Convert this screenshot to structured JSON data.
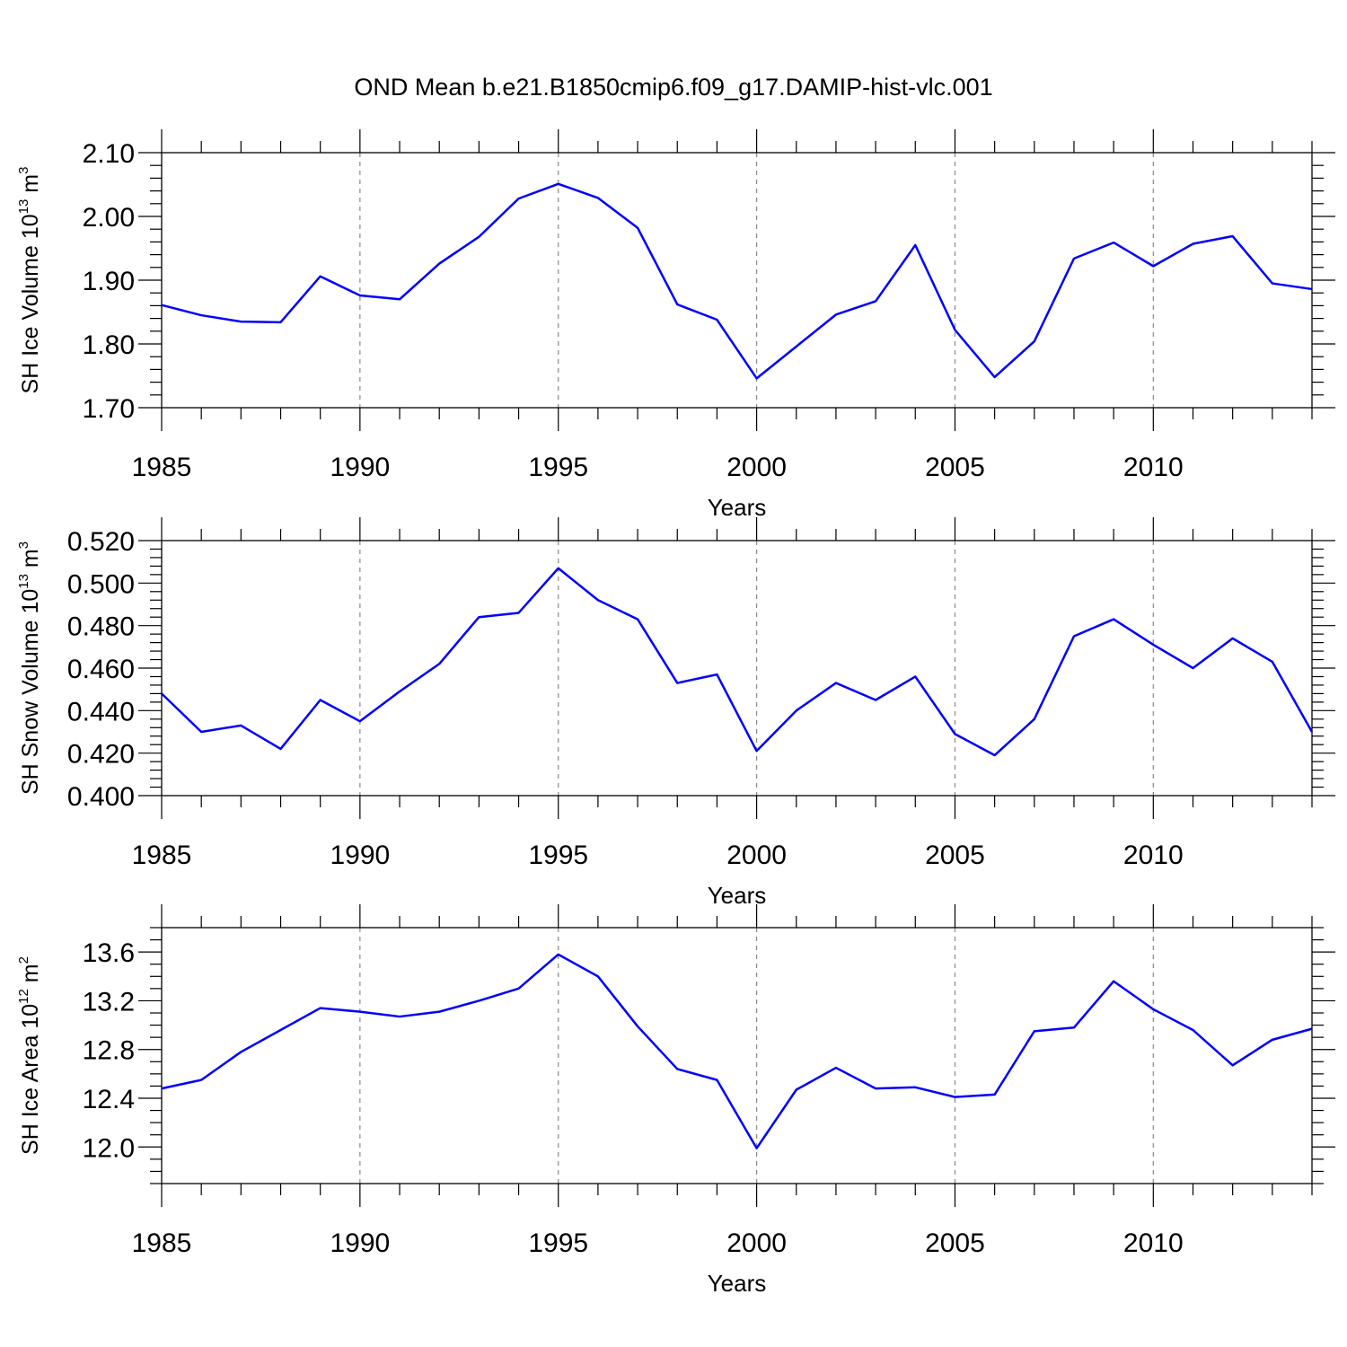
{
  "title": "OND Mean b.e21.B1850cmip6.f09_g17.DAMIP-hist-vlc.001",
  "colors": {
    "line": "#0000ff",
    "axis": "#000000",
    "grid": "#888888"
  },
  "chart_data": [
    {
      "type": "line",
      "ylabel": {
        "text": "SH Ice Volume 10",
        "exponent": "13",
        "unit": " m",
        "unit_exponent": "3"
      },
      "xlabel": "Years",
      "xlim": [
        1985,
        2014
      ],
      "ylim": [
        1.7,
        2.1
      ],
      "xticks": [
        1985,
        1990,
        1995,
        2000,
        2005,
        2010
      ],
      "xtick_labels": [
        "1985",
        "1990",
        "1995",
        "2000",
        "2005",
        "2010"
      ],
      "yticks": [
        1.7,
        1.8,
        1.9,
        2.0,
        2.1
      ],
      "ytick_labels": [
        "1.70",
        "1.80",
        "1.90",
        "2.00",
        "2.10"
      ],
      "yminor": 0.02,
      "grid": "x-dashed",
      "x": [
        1985,
        1986,
        1987,
        1988,
        1989,
        1990,
        1991,
        1992,
        1993,
        1994,
        1995,
        1996,
        1997,
        1998,
        1999,
        2000,
        2001,
        2002,
        2003,
        2004,
        2005,
        2006,
        2007,
        2008,
        2009,
        2010,
        2011,
        2012,
        2013,
        2014
      ],
      "values": [
        1.861,
        1.845,
        1.835,
        1.834,
        1.906,
        1.876,
        1.87,
        1.926,
        1.968,
        2.028,
        2.051,
        2.029,
        1.982,
        1.862,
        1.838,
        1.746,
        1.796,
        1.846,
        1.867,
        1.955,
        1.822,
        1.748,
        1.804,
        1.934,
        1.959,
        1.922,
        1.957,
        1.969,
        1.895,
        1.886
      ]
    },
    {
      "type": "line",
      "ylabel": {
        "text": "SH Snow Volume 10",
        "exponent": "13",
        "unit": " m",
        "unit_exponent": "3"
      },
      "xlabel": "Years",
      "xlim": [
        1985,
        2014
      ],
      "ylim": [
        0.4,
        0.52
      ],
      "xticks": [
        1985,
        1990,
        1995,
        2000,
        2005,
        2010
      ],
      "xtick_labels": [
        "1985",
        "1990",
        "1995",
        "2000",
        "2005",
        "2010"
      ],
      "yticks": [
        0.4,
        0.42,
        0.44,
        0.46,
        0.48,
        0.5,
        0.52
      ],
      "ytick_labels": [
        "0.400",
        "0.420",
        "0.440",
        "0.460",
        "0.480",
        "0.500",
        "0.520"
      ],
      "yminor": 0.004,
      "grid": "x-dashed",
      "x": [
        1985,
        1986,
        1987,
        1988,
        1989,
        1990,
        1991,
        1992,
        1993,
        1994,
        1995,
        1996,
        1997,
        1998,
        1999,
        2000,
        2001,
        2002,
        2003,
        2004,
        2005,
        2006,
        2007,
        2008,
        2009,
        2010,
        2011,
        2012,
        2013,
        2014
      ],
      "values": [
        0.448,
        0.43,
        0.433,
        0.422,
        0.445,
        0.435,
        0.449,
        0.462,
        0.484,
        0.486,
        0.507,
        0.492,
        0.483,
        0.453,
        0.457,
        0.421,
        0.44,
        0.453,
        0.445,
        0.456,
        0.429,
        0.419,
        0.436,
        0.475,
        0.483,
        0.471,
        0.46,
        0.474,
        0.463,
        0.43
      ]
    },
    {
      "type": "line",
      "ylabel": {
        "text": "SH Ice Area 10",
        "exponent": "12",
        "unit": " m",
        "unit_exponent": "2"
      },
      "xlabel": "Years",
      "xlim": [
        1985,
        2014
      ],
      "ylim": [
        11.7,
        13.8
      ],
      "xticks": [
        1985,
        1990,
        1995,
        2000,
        2005,
        2010
      ],
      "xtick_labels": [
        "1985",
        "1990",
        "1995",
        "2000",
        "2005",
        "2010"
      ],
      "yticks": [
        12.0,
        12.4,
        12.8,
        13.2,
        13.6
      ],
      "ytick_labels": [
        "12.0",
        "12.4",
        "12.8",
        "13.2",
        "13.6"
      ],
      "yminor": 0.1,
      "grid": "x-dashed",
      "x": [
        1985,
        1986,
        1987,
        1988,
        1989,
        1990,
        1991,
        1992,
        1993,
        1994,
        1995,
        1996,
        1997,
        1998,
        1999,
        2000,
        2001,
        2002,
        2003,
        2004,
        2005,
        2006,
        2007,
        2008,
        2009,
        2010,
        2011,
        2012,
        2013,
        2014
      ],
      "values": [
        12.48,
        12.55,
        12.78,
        12.96,
        13.14,
        13.11,
        13.07,
        13.11,
        13.2,
        13.3,
        13.58,
        13.4,
        12.99,
        12.64,
        12.55,
        11.99,
        12.47,
        12.65,
        12.48,
        12.49,
        12.41,
        12.43,
        12.95,
        12.98,
        13.36,
        13.13,
        12.96,
        12.67,
        12.88,
        12.97
      ]
    }
  ]
}
